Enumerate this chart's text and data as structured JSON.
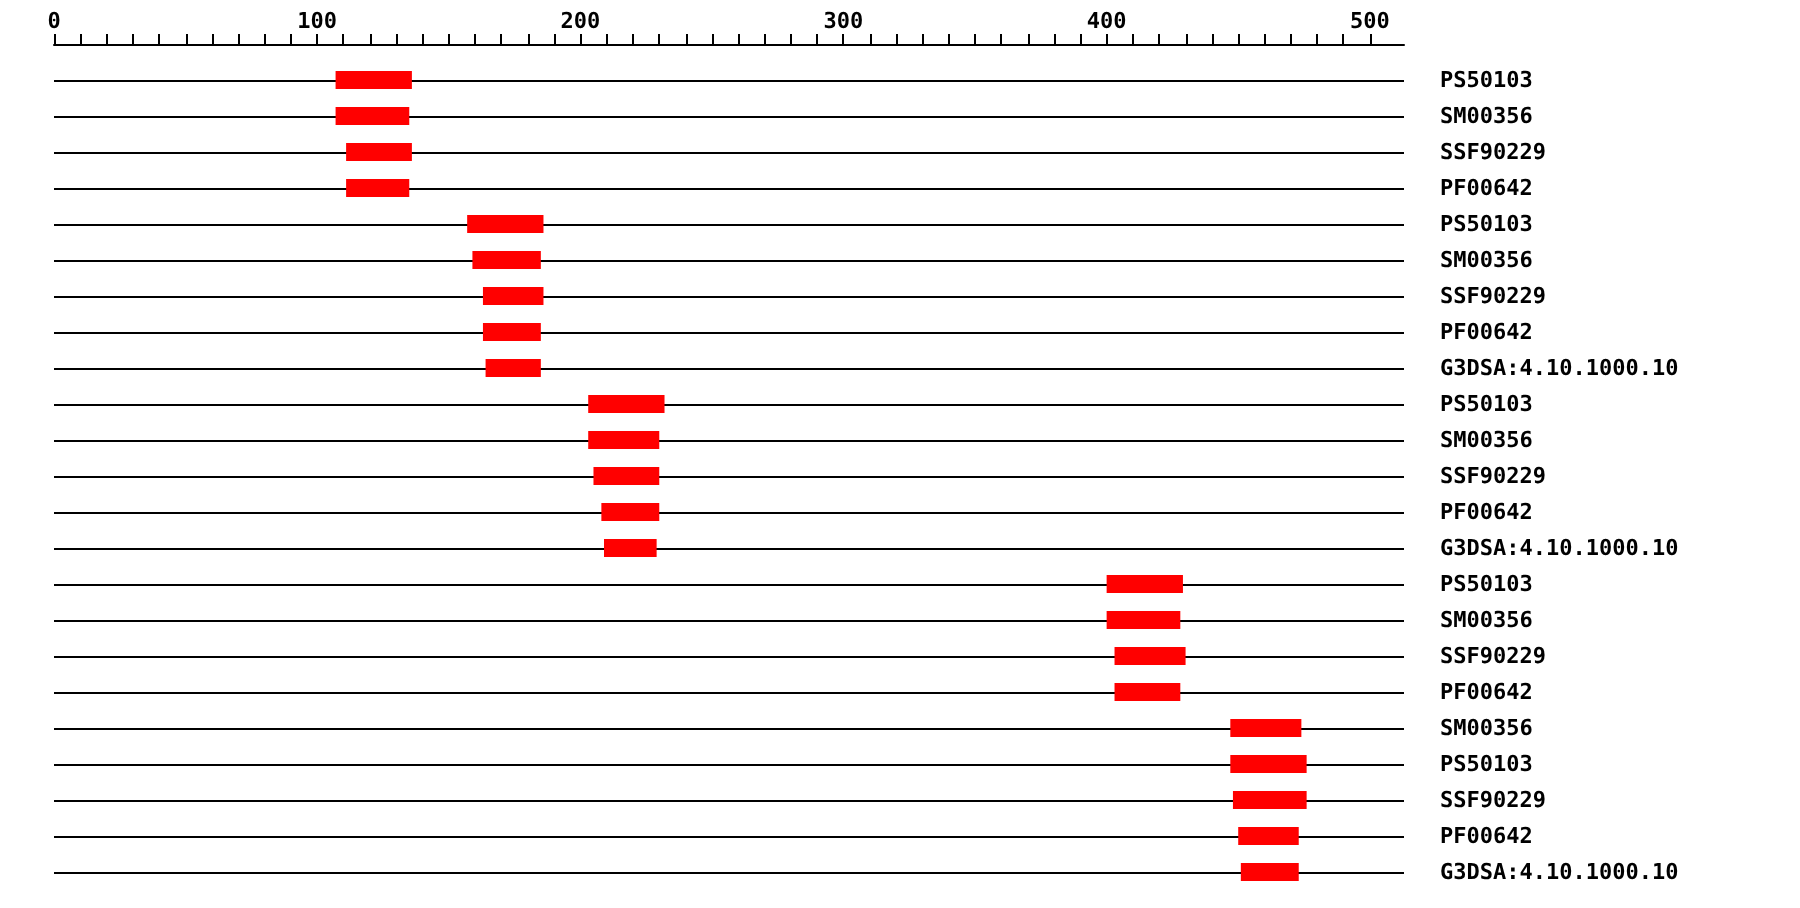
{
  "chart_data": {
    "type": "bar",
    "orientation": "horizontal",
    "grid": "y",
    "categories": [
      "PS50103",
      "SM00356",
      "SSF90229",
      "PF00642",
      "PS50103",
      "SM00356",
      "SSF90229",
      "PF00642",
      "G3DSA:4.10.1000.10",
      "PS50103",
      "SM00356",
      "SSF90229",
      "PF00642",
      "G3DSA:4.10.1000.10",
      "PS50103",
      "SM00356",
      "SSF90229",
      "PF00642",
      "SM00356",
      "PS50103",
      "SSF90229",
      "PF00642",
      "G3DSA:4.10.1000.10"
    ],
    "base": [
      107,
      107,
      111,
      111,
      157,
      159,
      163,
      163,
      164,
      203,
      203,
      205,
      208,
      209,
      400,
      400,
      403,
      403,
      447,
      447,
      448,
      450,
      451
    ],
    "values": [
      29,
      28,
      25,
      24,
      29,
      26,
      23,
      22,
      21,
      29,
      27,
      25,
      22,
      20,
      29,
      28,
      27,
      25,
      27,
      29,
      28,
      23,
      22
    ],
    "color": "#ff0000",
    "xlim": [
      0,
      513
    ],
    "xticks": [
      0,
      {
        "value": 10,
        "label": null
      },
      {
        "value": 20,
        "label": null
      },
      {
        "value": 30,
        "label": null
      },
      {
        "value": 40,
        "label": null
      },
      {
        "value": 50,
        "label": null
      },
      {
        "value": 60,
        "label": null
      },
      {
        "value": 70,
        "label": null
      },
      {
        "value": 80,
        "label": null
      },
      {
        "value": 90,
        "label": null
      },
      100,
      {
        "value": 110,
        "label": null
      },
      {
        "value": 120,
        "label": null
      },
      {
        "value": 130,
        "label": null
      },
      {
        "value": 140,
        "label": null
      },
      {
        "value": 150,
        "label": null
      },
      {
        "value": 160,
        "label": null
      },
      {
        "value": 170,
        "label": null
      },
      {
        "value": 180,
        "label": null
      },
      {
        "value": 190,
        "label": null
      },
      200,
      {
        "value": 210,
        "label": null
      },
      {
        "value": 220,
        "label": null
      },
      {
        "value": 230,
        "label": null
      },
      {
        "value": 240,
        "label": null
      },
      {
        "value": 250,
        "label": null
      },
      {
        "value": 260,
        "label": null
      },
      {
        "value": 270,
        "label": null
      },
      {
        "value": 280,
        "label": null
      },
      {
        "value": 290,
        "label": null
      },
      300,
      {
        "value": 310,
        "label": null
      },
      {
        "value": 320,
        "label": null
      },
      {
        "value": 330,
        "label": null
      },
      {
        "value": 340,
        "label": null
      },
      {
        "value": 350,
        "label": null
      },
      {
        "value": 360,
        "label": null
      },
      {
        "value": 370,
        "label": null
      },
      {
        "value": 380,
        "label": null
      },
      {
        "value": 390,
        "label": null
      },
      400,
      {
        "value": 410,
        "label": null
      },
      {
        "value": 420,
        "label": null
      },
      {
        "value": 430,
        "label": null
      },
      {
        "value": 440,
        "label": null
      },
      {
        "value": 450,
        "label": null
      },
      {
        "value": 460,
        "label": null
      },
      {
        "value": 470,
        "label": null
      },
      {
        "value": 480,
        "label": null
      },
      {
        "value": 490,
        "label": null
      },
      500
    ]
  }
}
